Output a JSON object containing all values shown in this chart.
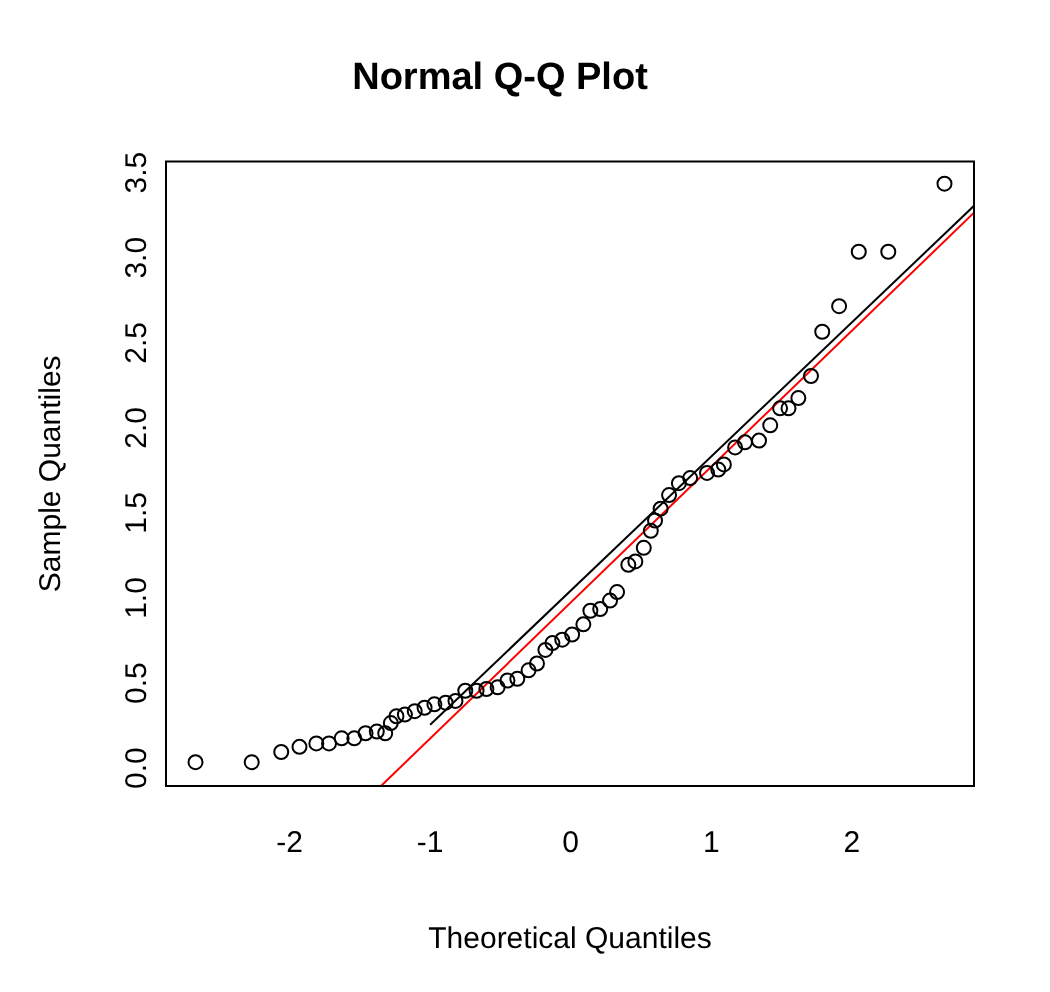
{
  "chart_data": {
    "type": "scatter",
    "title": "Normal Q-Q Plot",
    "xlabel": "Theoretical Quantiles",
    "ylabel": "Sample Quantiles",
    "xlim": [
      -2.88,
      2.87
    ],
    "ylim": [
      -0.11,
      3.56
    ],
    "xticks": [
      -2,
      -1,
      0,
      1,
      2
    ],
    "yticks": [
      {
        "value": 0,
        "label": "0.0"
      },
      {
        "value": 0.5,
        "label": "0.5"
      },
      {
        "value": 1,
        "label": "1.0"
      },
      {
        "value": 1.5,
        "label": "1.5"
      },
      {
        "value": 2,
        "label": "2.0"
      },
      {
        "value": 2.5,
        "label": "2.5"
      },
      {
        "value": 3,
        "label": "3.0"
      },
      {
        "value": 3.5,
        "label": "3.5"
      }
    ],
    "grid": false,
    "legend": false,
    "marker": "circle",
    "series": [
      {
        "color": "#000000",
        "x": [
          -2.67,
          -2.27,
          -2.06,
          -1.93,
          -1.81,
          -1.72,
          -1.63,
          -1.54,
          -1.46,
          -1.38,
          -1.32,
          -1.28,
          -1.24,
          -1.18,
          -1.11,
          -1.04,
          -0.97,
          -0.89,
          -0.82,
          -0.75,
          -0.67,
          -0.6,
          -0.52,
          -0.45,
          -0.38,
          -0.3,
          -0.24,
          -0.18,
          -0.13,
          -0.06,
          0.01,
          0.09,
          0.14,
          0.21,
          0.28,
          0.33,
          0.41,
          0.46,
          0.52,
          0.57,
          0.6,
          0.64,
          0.7,
          0.77,
          0.85,
          0.97,
          1.05,
          1.09,
          1.17,
          1.24,
          1.34,
          1.42,
          1.49,
          1.55,
          1.62,
          1.71,
          1.79,
          1.91,
          2.05,
          2.26,
          2.66
        ],
        "values": [
          0.03,
          0.03,
          0.09,
          0.12,
          0.14,
          0.14,
          0.17,
          0.17,
          0.2,
          0.21,
          0.2,
          0.26,
          0.3,
          0.31,
          0.33,
          0.35,
          0.37,
          0.38,
          0.39,
          0.45,
          0.45,
          0.46,
          0.47,
          0.51,
          0.52,
          0.57,
          0.61,
          0.69,
          0.73,
          0.75,
          0.78,
          0.84,
          0.92,
          0.93,
          0.98,
          1.03,
          1.19,
          1.21,
          1.29,
          1.39,
          1.45,
          1.52,
          1.6,
          1.67,
          1.7,
          1.73,
          1.75,
          1.78,
          1.88,
          1.91,
          1.92,
          2.01,
          2.11,
          2.11,
          2.17,
          2.3,
          2.56,
          2.71,
          3.03,
          3.03,
          3.43
        ]
      },
      {
        "type": "line",
        "marker": "none",
        "color": "#000000",
        "x": [
          -1.0,
          2.87
        ],
        "values": [
          0.25,
          3.3
        ]
      },
      {
        "type": "line",
        "marker": "none",
        "color": "#ff0000",
        "x": [
          -1.35,
          2.87
        ],
        "values": [
          -0.11,
          3.26
        ]
      }
    ]
  }
}
